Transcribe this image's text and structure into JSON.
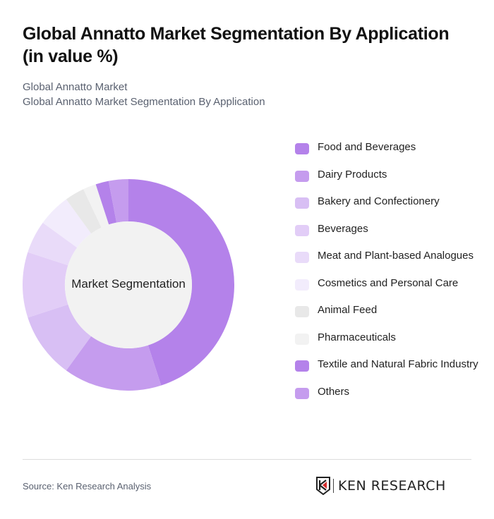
{
  "header": {
    "title": "Global Annatto Market Segmentation By Application (in value %)",
    "subtitle_line1": "Global Annatto Market",
    "subtitle_line2": "Global Annatto Market Segmentation By Application"
  },
  "chart": {
    "center_label": "Market Segmentation"
  },
  "legend": [
    {
      "label": "Food and Beverages",
      "color": "#b482ea"
    },
    {
      "label": "Dairy Products",
      "color": "#c59cee"
    },
    {
      "label": "Bakery and Confectionery",
      "color": "#d8bff4"
    },
    {
      "label": "Beverages",
      "color": "#e2cdf7"
    },
    {
      "label": "Meat and Plant-based Analogues",
      "color": "#e9dbf9"
    },
    {
      "label": "Cosmetics and Personal Care",
      "color": "#f2ecfc"
    },
    {
      "label": "Animal Feed",
      "color": "#e8e8e8"
    },
    {
      "label": "Pharmaceuticals",
      "color": "#f2f2f2"
    },
    {
      "label": "Textile and Natural Fabric Industry",
      "color": "#b482ea"
    },
    {
      "label": "Others",
      "color": "#c59cee"
    }
  ],
  "footer": {
    "source": "Source: Ken Research Analysis",
    "logo_text": "KEN RESEARCH"
  },
  "chart_data": {
    "type": "pie",
    "variant": "donut",
    "title": "Global Annatto Market Segmentation By Application (in value %)",
    "subtitle": "Global Annatto Market Segmentation By Application",
    "center_label": "Market Segmentation",
    "categories": [
      "Food and Beverages",
      "Dairy Products",
      "Bakery and Confectionery",
      "Beverages",
      "Meat and Plant-based Analogues",
      "Cosmetics and Personal Care",
      "Animal Feed",
      "Pharmaceuticals",
      "Textile and Natural Fabric Industry",
      "Others"
    ],
    "values": [
      45,
      15,
      10,
      10,
      5,
      5,
      3,
      2,
      2,
      3
    ],
    "colors": [
      "#b482ea",
      "#c59cee",
      "#d8bff4",
      "#e2cdf7",
      "#e9dbf9",
      "#f2ecfc",
      "#e8e8e8",
      "#f2f2f2",
      "#b482ea",
      "#c59cee"
    ],
    "unit": "%",
    "legend_position": "right",
    "source": "Source: Ken Research Analysis"
  }
}
